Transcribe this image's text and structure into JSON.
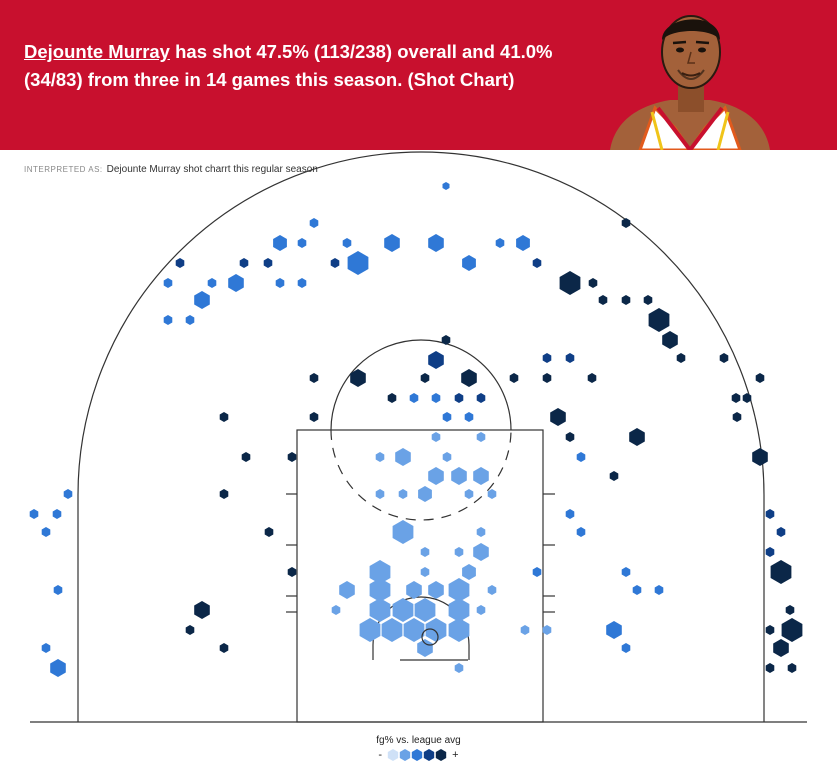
{
  "header": {
    "player_name": "Dejounte Murray",
    "headline_rest": " has shot 47.5% (113/238) overall and 41.0% (34/83) from three in 14 games this season. (Shot Chart)"
  },
  "interpreted": {
    "label": "INTERPRETED AS:",
    "query": "Dejounte Murray shot charrt this regular season"
  },
  "legend": {
    "title": "fg% vs. league avg",
    "minus": "-",
    "plus": "+",
    "colors": [
      "#cfe1f7",
      "#6aa2e6",
      "#2f78d6",
      "#0f3e86",
      "#0b2748"
    ]
  },
  "colors": {
    "banner": "#c8102e",
    "court_line": "#333333"
  },
  "chart_data": {
    "type": "hexbin-shot-chart",
    "overall": {
      "fg_pct": 47.5,
      "made": 113,
      "attempts": 238
    },
    "three_point": {
      "fg_pct": 41.0,
      "made": 34,
      "attempts": 83
    },
    "games": 14
  }
}
